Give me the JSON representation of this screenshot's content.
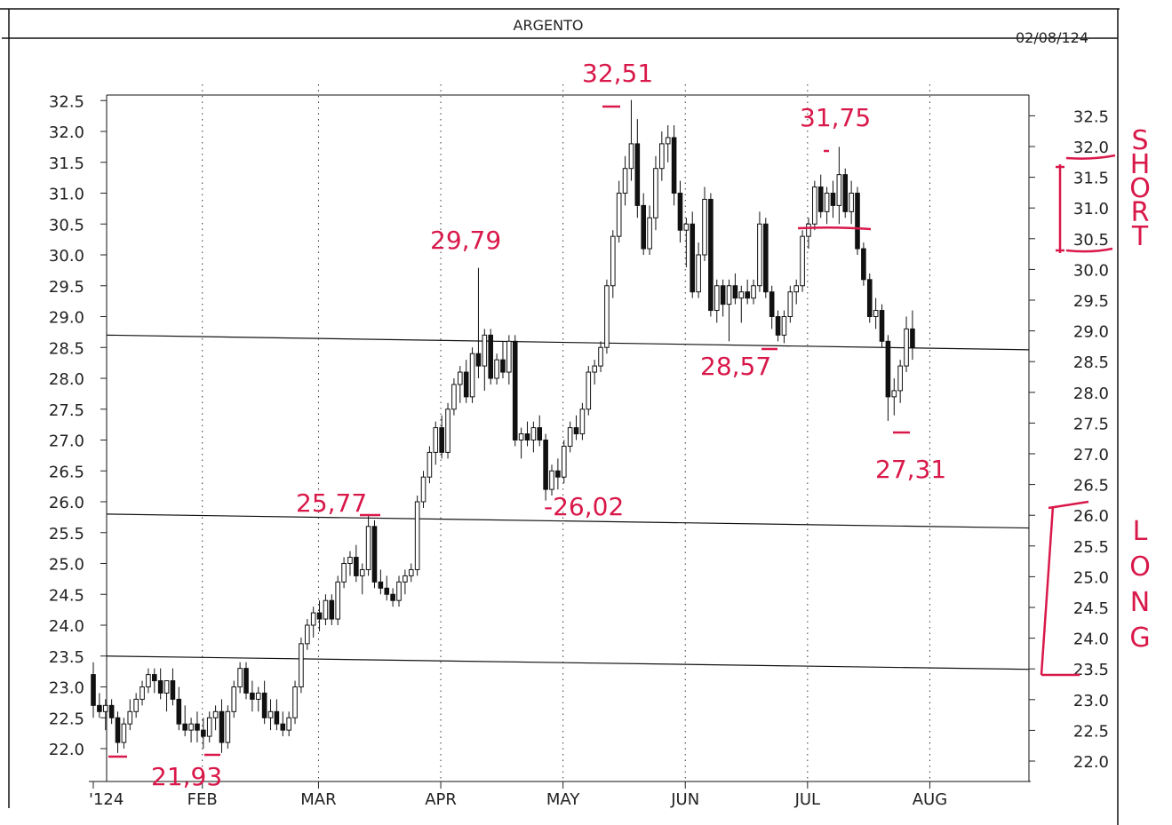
{
  "chart_data": {
    "type": "candlestick",
    "title": "ARGENTO",
    "date_label": "02/08/124",
    "y_range": [
      21.7,
      32.8
    ],
    "y_ticks": [
      "22.0",
      "22.5",
      "23.0",
      "23.5",
      "24.0",
      "24.5",
      "25.0",
      "25.5",
      "26.0",
      "26.5",
      "27.0",
      "27.5",
      "28.0",
      "28.5",
      "29.0",
      "29.5",
      "30.0",
      "30.5",
      "31.0",
      "31.5",
      "32.0",
      "32.5"
    ],
    "x_labels": [
      "'124",
      "FEB",
      "MAR",
      "APR",
      "MAY",
      "JUN",
      "JUL",
      "AUG"
    ],
    "month_index": [
      0,
      19,
      38,
      58,
      78,
      98,
      118,
      138
    ],
    "horizontal_lines": [
      28.7,
      25.8,
      23.5
    ],
    "candles": [
      [
        23.2,
        23.4,
        22.5,
        22.7
      ],
      [
        22.7,
        22.9,
        22.5,
        22.6
      ],
      [
        22.6,
        22.8,
        22.3,
        22.7
      ],
      [
        22.7,
        22.8,
        22.4,
        22.5
      ],
      [
        22.5,
        22.6,
        21.93,
        22.1
      ],
      [
        22.1,
        22.5,
        22.0,
        22.4
      ],
      [
        22.4,
        22.8,
        22.3,
        22.6
      ],
      [
        22.6,
        22.9,
        22.5,
        22.8
      ],
      [
        22.8,
        23.1,
        22.7,
        23.0
      ],
      [
        23.0,
        23.3,
        22.9,
        23.2
      ],
      [
        23.2,
        23.3,
        22.9,
        23.1
      ],
      [
        23.1,
        23.3,
        22.8,
        22.9
      ],
      [
        22.9,
        23.1,
        22.6,
        23.1
      ],
      [
        23.1,
        23.3,
        22.7,
        22.8
      ],
      [
        22.8,
        23.0,
        22.3,
        22.4
      ],
      [
        22.4,
        22.7,
        22.2,
        22.3
      ],
      [
        22.3,
        22.5,
        22.1,
        22.4
      ],
      [
        22.4,
        22.6,
        22.1,
        22.3
      ],
      [
        22.3,
        22.5,
        22.0,
        22.2
      ],
      [
        22.2,
        22.6,
        22.1,
        22.5
      ],
      [
        22.5,
        22.7,
        22.3,
        22.6
      ],
      [
        22.6,
        22.8,
        21.93,
        22.1
      ],
      [
        22.1,
        22.7,
        22.0,
        22.6
      ],
      [
        22.6,
        23.1,
        22.5,
        23.0
      ],
      [
        23.0,
        23.4,
        22.9,
        23.3
      ],
      [
        23.3,
        23.4,
        22.8,
        22.9
      ],
      [
        22.9,
        23.1,
        22.6,
        22.8
      ],
      [
        22.8,
        23.0,
        22.6,
        22.9
      ],
      [
        22.9,
        23.1,
        22.4,
        22.5
      ],
      [
        22.5,
        22.8,
        22.3,
        22.6
      ],
      [
        22.6,
        22.8,
        22.3,
        22.4
      ],
      [
        22.4,
        22.6,
        22.2,
        22.3
      ],
      [
        22.3,
        22.6,
        22.2,
        22.5
      ],
      [
        22.5,
        23.1,
        22.4,
        23.0
      ],
      [
        23.0,
        23.8,
        22.9,
        23.7
      ],
      [
        23.7,
        24.1,
        23.6,
        24.0
      ],
      [
        24.0,
        24.3,
        23.8,
        24.2
      ],
      [
        24.2,
        24.4,
        23.9,
        24.1
      ],
      [
        24.1,
        24.5,
        24.0,
        24.4
      ],
      [
        24.4,
        24.5,
        24.0,
        24.1
      ],
      [
        24.1,
        24.8,
        24.0,
        24.7
      ],
      [
        24.7,
        25.1,
        24.6,
        25.0
      ],
      [
        25.0,
        25.2,
        24.8,
        25.1
      ],
      [
        25.1,
        25.3,
        24.7,
        24.8
      ],
      [
        24.8,
        25.0,
        24.5,
        24.9
      ],
      [
        24.9,
        25.77,
        24.8,
        25.6
      ],
      [
        25.6,
        25.7,
        24.6,
        24.7
      ],
      [
        24.7,
        24.9,
        24.5,
        24.6
      ],
      [
        24.6,
        24.8,
        24.4,
        24.5
      ],
      [
        24.5,
        24.6,
        24.3,
        24.4
      ],
      [
        24.4,
        24.8,
        24.3,
        24.7
      ],
      [
        24.7,
        24.9,
        24.5,
        24.8
      ],
      [
        24.8,
        25.0,
        24.7,
        24.9
      ],
      [
        24.9,
        26.1,
        24.8,
        26.0
      ],
      [
        26.0,
        26.5,
        25.9,
        26.4
      ],
      [
        26.4,
        26.9,
        26.3,
        26.8
      ],
      [
        26.8,
        27.3,
        26.6,
        27.2
      ],
      [
        27.2,
        27.4,
        26.7,
        26.8
      ],
      [
        26.8,
        27.6,
        26.7,
        27.5
      ],
      [
        27.5,
        28.0,
        27.4,
        27.9
      ],
      [
        27.9,
        28.2,
        27.6,
        28.1
      ],
      [
        28.1,
        28.3,
        27.6,
        27.7
      ],
      [
        27.7,
        28.5,
        27.6,
        28.4
      ],
      [
        28.4,
        29.79,
        28.0,
        28.2
      ],
      [
        28.2,
        28.8,
        27.8,
        28.7
      ],
      [
        28.7,
        28.8,
        27.9,
        28.0
      ],
      [
        28.0,
        28.4,
        27.9,
        28.3
      ],
      [
        28.3,
        28.6,
        28.0,
        28.1
      ],
      [
        28.1,
        28.7,
        27.9,
        28.6
      ],
      [
        28.6,
        28.7,
        26.9,
        27.0
      ],
      [
        27.0,
        27.2,
        26.7,
        27.1
      ],
      [
        27.1,
        27.3,
        26.9,
        27.0
      ],
      [
        27.0,
        27.3,
        26.8,
        27.2
      ],
      [
        27.2,
        27.4,
        26.9,
        27.0
      ],
      [
        27.0,
        27.1,
        26.02,
        26.2
      ],
      [
        26.2,
        26.6,
        26.1,
        26.5
      ],
      [
        26.5,
        26.7,
        26.2,
        26.4
      ],
      [
        26.4,
        27.0,
        26.3,
        26.9
      ],
      [
        26.9,
        27.3,
        26.8,
        27.2
      ],
      [
        27.2,
        27.4,
        27.0,
        27.1
      ],
      [
        27.1,
        27.6,
        27.0,
        27.5
      ],
      [
        27.5,
        28.2,
        27.4,
        28.1
      ],
      [
        28.1,
        28.3,
        27.9,
        28.2
      ],
      [
        28.2,
        28.6,
        28.1,
        28.5
      ],
      [
        28.5,
        29.6,
        28.4,
        29.5
      ],
      [
        29.5,
        30.4,
        29.3,
        30.3
      ],
      [
        30.3,
        31.2,
        30.2,
        31.0
      ],
      [
        31.0,
        31.6,
        30.8,
        31.4
      ],
      [
        31.4,
        32.51,
        31.2,
        31.8
      ],
      [
        31.8,
        32.2,
        30.6,
        30.8
      ],
      [
        30.8,
        31.0,
        30.0,
        30.1
      ],
      [
        30.1,
        30.8,
        30.0,
        30.6
      ],
      [
        30.6,
        31.6,
        30.4,
        31.4
      ],
      [
        31.4,
        32.0,
        31.2,
        31.8
      ],
      [
        31.8,
        32.1,
        31.5,
        31.9
      ],
      [
        31.9,
        32.1,
        30.8,
        31.0
      ],
      [
        31.0,
        31.2,
        30.2,
        30.4
      ],
      [
        30.4,
        30.6,
        29.8,
        30.5
      ],
      [
        30.5,
        30.7,
        29.3,
        29.4
      ],
      [
        29.4,
        30.2,
        29.3,
        30.0
      ],
      [
        30.0,
        31.1,
        29.9,
        30.9
      ],
      [
        30.9,
        31.0,
        29.0,
        29.1
      ],
      [
        29.1,
        29.6,
        28.9,
        29.5
      ],
      [
        29.5,
        29.6,
        29.0,
        29.2
      ],
      [
        29.2,
        29.6,
        28.6,
        29.5
      ],
      [
        29.5,
        29.7,
        29.2,
        29.3
      ],
      [
        29.3,
        29.5,
        28.9,
        29.4
      ],
      [
        29.4,
        29.6,
        29.2,
        29.3
      ],
      [
        29.3,
        29.6,
        29.2,
        29.5
      ],
      [
        29.5,
        30.7,
        29.4,
        30.5
      ],
      [
        30.5,
        30.6,
        29.3,
        29.4
      ],
      [
        29.4,
        29.5,
        28.8,
        29.0
      ],
      [
        29.0,
        29.1,
        28.6,
        28.7
      ],
      [
        28.7,
        29.1,
        28.57,
        29.0
      ],
      [
        29.0,
        29.5,
        28.9,
        29.4
      ],
      [
        29.4,
        29.6,
        29.2,
        29.5
      ],
      [
        29.5,
        30.4,
        29.4,
        30.3
      ],
      [
        30.3,
        30.6,
        30.1,
        30.5
      ],
      [
        30.5,
        31.2,
        30.4,
        31.1
      ],
      [
        31.1,
        31.3,
        30.6,
        30.7
      ],
      [
        30.7,
        31.1,
        30.5,
        31.0
      ],
      [
        31.0,
        31.2,
        30.6,
        30.8
      ],
      [
        30.8,
        31.75,
        30.5,
        31.3
      ],
      [
        31.3,
        31.4,
        30.6,
        30.7
      ],
      [
        30.7,
        31.2,
        30.5,
        31.0
      ],
      [
        31.0,
        31.1,
        30.0,
        30.1
      ],
      [
        30.1,
        30.2,
        29.5,
        29.6
      ],
      [
        29.6,
        29.7,
        28.9,
        29.0
      ],
      [
        29.0,
        29.3,
        28.8,
        29.1
      ],
      [
        29.1,
        29.2,
        28.5,
        28.6
      ],
      [
        28.6,
        28.7,
        27.31,
        27.7
      ],
      [
        27.7,
        28.0,
        27.4,
        27.8
      ],
      [
        27.8,
        28.3,
        27.6,
        28.2
      ],
      [
        28.2,
        29.0,
        28.1,
        28.8
      ],
      [
        28.8,
        29.1,
        28.3,
        28.5
      ]
    ]
  },
  "annotations": {
    "high1": "32,51",
    "high2": "31,75",
    "level_2979": "29,79",
    "low_2857": "28,57",
    "low_2731": "27,31",
    "low_2602": "-26,02",
    "high_2577": "25,77",
    "low_2193": "21,93",
    "short_letters": [
      "S",
      "H",
      "O",
      "R",
      "T"
    ],
    "long_letters": [
      "L",
      "O",
      "N",
      "G"
    ]
  },
  "colors": {
    "ink": "#111111",
    "annotation": "#d9184a"
  }
}
